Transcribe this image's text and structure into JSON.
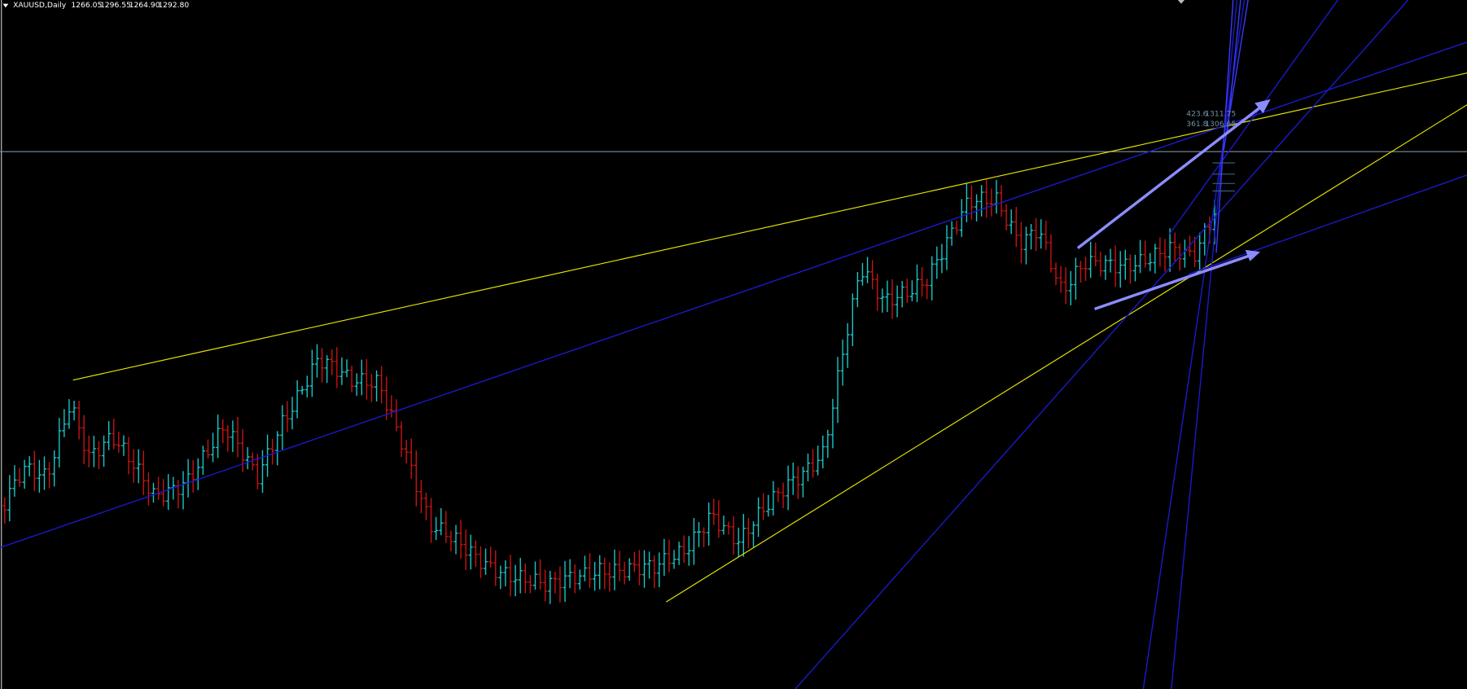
{
  "header": {
    "symbol": "XAUUSD,Daily",
    "open": "1266.05",
    "high": "1296.55",
    "low": "1264.90",
    "close": "1292.80"
  },
  "fibo_levels": [
    {
      "level": "423.6",
      "price": "1311.75"
    },
    {
      "level": "361.8",
      "price": "1306.65"
    }
  ]
}
